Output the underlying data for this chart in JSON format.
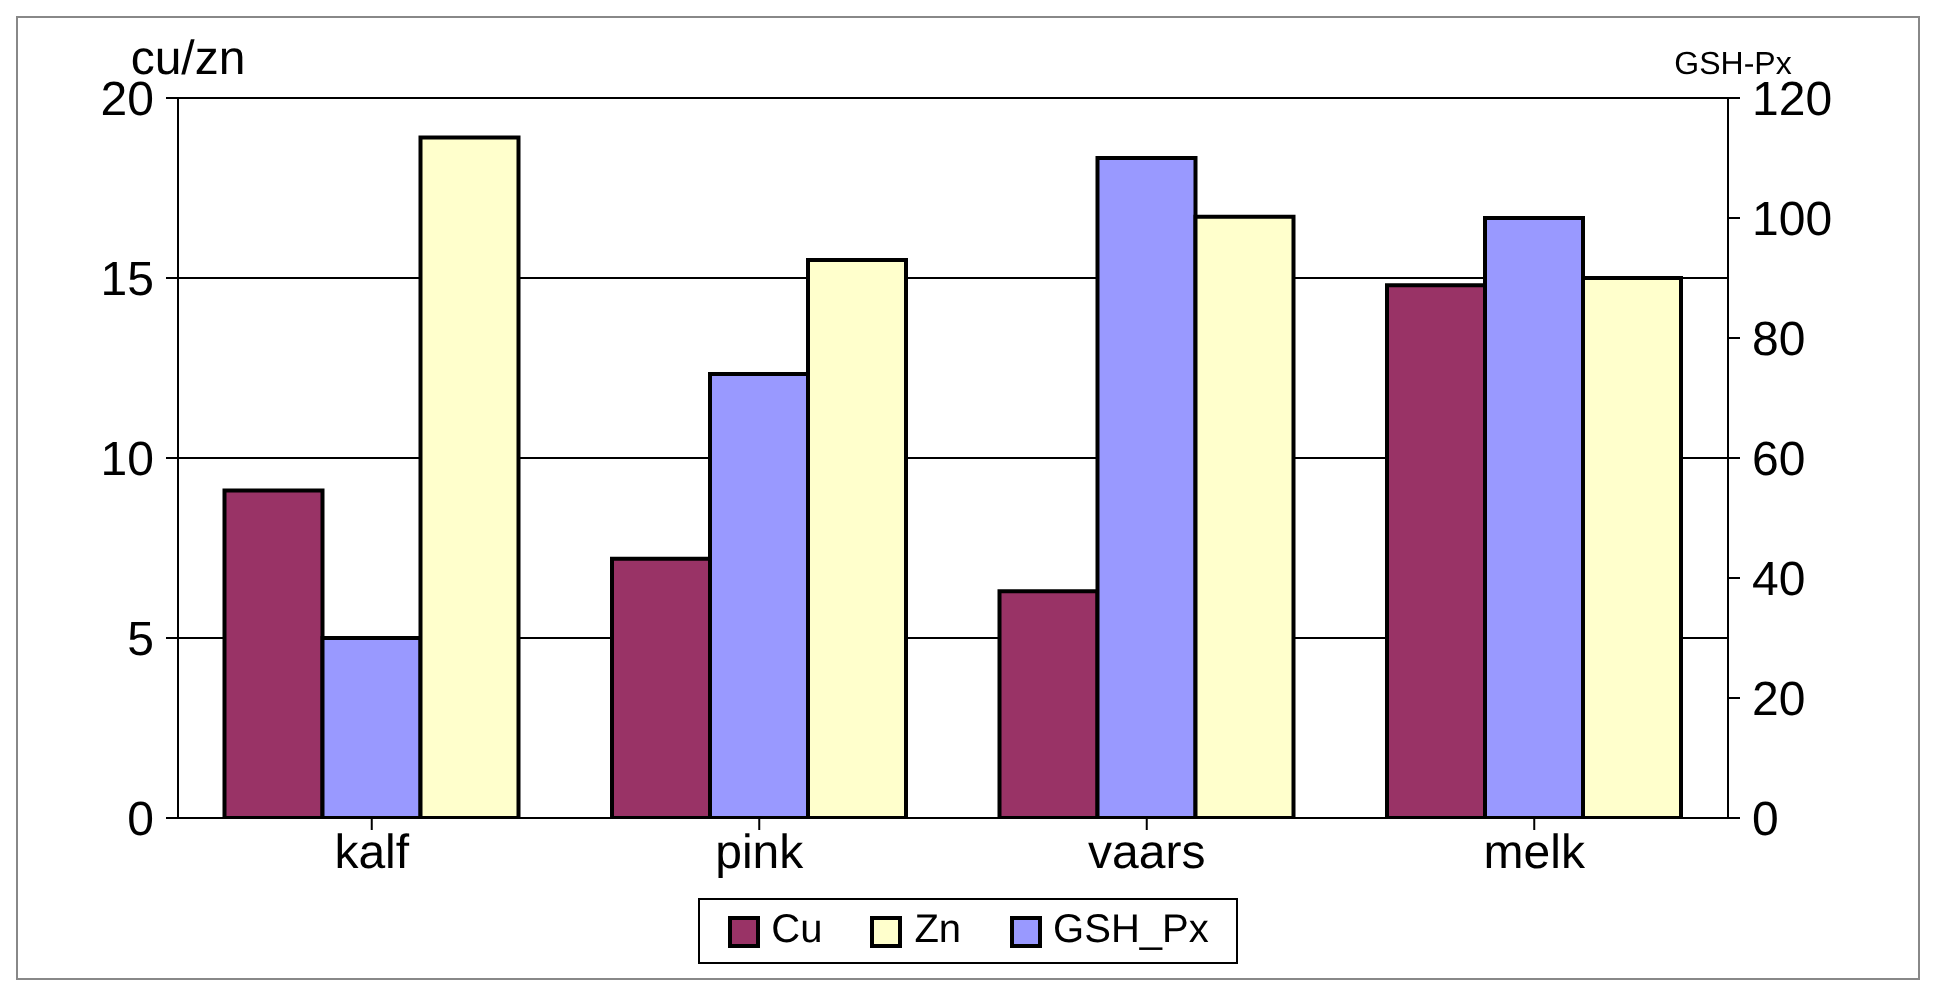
{
  "chart_data": {
    "type": "bar",
    "categories": [
      "kalf",
      "pink",
      "vaars",
      "melk"
    ],
    "ylabel": "cu/zn",
    "y2label": "GSH-Px",
    "series": [
      {
        "name": "Cu",
        "color": "#993366",
        "values": [
          9.1,
          7.2,
          6.3,
          14.8
        ]
      },
      {
        "name": "Zn",
        "color": "#ffffcc",
        "values": [
          18.9,
          15.5,
          16.7,
          15.0
        ]
      },
      {
        "name": "GSH_Px",
        "color": "#9999ff",
        "values": [
          30,
          74,
          110,
          100
        ],
        "axis": "y2"
      }
    ],
    "ylim": [
      0,
      20
    ],
    "yticks": [
      0,
      5,
      10,
      15,
      20
    ],
    "y2lim": [
      0,
      120
    ],
    "y2ticks": [
      0,
      20,
      40,
      60,
      80,
      100,
      120
    ],
    "grid": "y",
    "legend": "bottom"
  }
}
